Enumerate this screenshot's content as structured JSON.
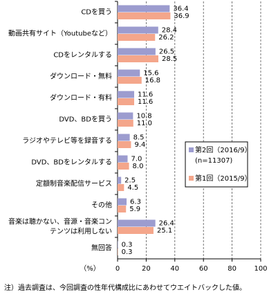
{
  "chart_data": {
    "type": "hbar",
    "categories": [
      "CDを買う",
      "動画共有サイト（Youtubeなど）",
      "CDをレンタルする",
      "ダウンロード・無料",
      "ダウンロード・有料",
      "DVD、BDを買う",
      "ラジオやテレビ等を録音する",
      "DVD、BDをレンタルする",
      "定額制音楽配信サービス",
      "その他",
      "音楽は聴かない、音源・音楽コン\nテンツは利用しない",
      "無回答"
    ],
    "series": [
      {
        "name": "第2回（2016/9）",
        "color": "#9c9ccf",
        "values": [
          36.4,
          28.4,
          26.5,
          15.6,
          11.6,
          10.8,
          8.5,
          7.0,
          2.5,
          6.3,
          26.4,
          0.3
        ],
        "value_labels": [
          "36.4",
          "28.4",
          "26.5",
          "15.6",
          "11.6",
          "10.8",
          "8.5",
          "7.0",
          "2.5",
          "6.3",
          "26.4",
          "0.3"
        ]
      },
      {
        "name": "第1回（2015/9）",
        "color": "#f4a68b",
        "values": [
          36.9,
          26.2,
          28.5,
          16.8,
          11.6,
          11.0,
          9.4,
          8.0,
          4.5,
          5.9,
          25.1,
          0.3
        ],
        "value_labels": [
          "36.9",
          "26.2",
          "28.5",
          "16.8",
          "11.6",
          "11.0",
          "9.4",
          "8.0",
          "4.5",
          "5.9",
          "25.1",
          "0.3"
        ]
      }
    ],
    "sample_size_label": "(n=11307)",
    "xlabel": "（%）",
    "xlim": [
      0,
      100
    ],
    "xticks": [
      0,
      20,
      40,
      60,
      80,
      100
    ],
    "grid": true,
    "footnote": "注）過去調査は、今回調査の性年代構成比にあわせてウエイトバックした値。"
  }
}
